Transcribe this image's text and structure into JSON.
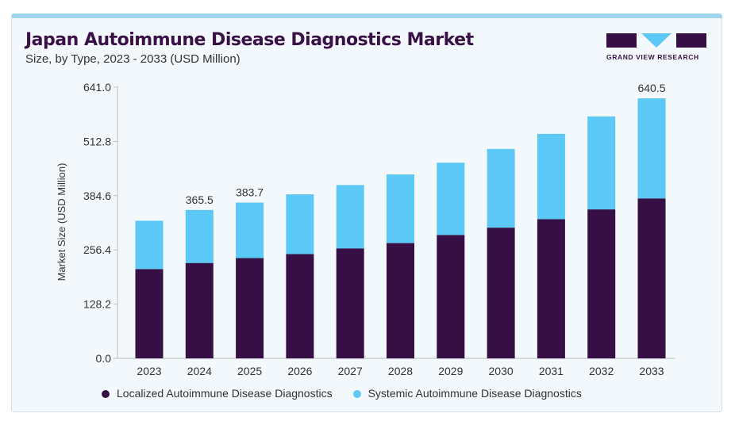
{
  "chart_data": {
    "type": "bar",
    "stacked": true,
    "title": "Japan Autoimmune Disease Diagnostics Market",
    "subtitle": "Size, by Type, 2023 - 2033 (USD Million)",
    "ylabel": "Market Size (USD Million)",
    "xlabel": "",
    "ylim": [
      0,
      641.0
    ],
    "yticks": [
      "0.0",
      "128.2",
      "256.4",
      "384.6",
      "512.8",
      "641.0"
    ],
    "categories": [
      "2023",
      "2024",
      "2025",
      "2026",
      "2027",
      "2028",
      "2029",
      "2030",
      "2031",
      "2032",
      "2033"
    ],
    "series": [
      {
        "name": "Localized Autoimmune Disease Diagnostics",
        "color": "#361045",
        "values": [
          220,
          235,
          247,
          257,
          271,
          284,
          304,
          322,
          343,
          367,
          394
        ]
      },
      {
        "name": "Systemic Autoimmune Disease Diagnostics",
        "color": "#5bc8f5",
        "values": [
          119,
          130.5,
          136.7,
          147,
          156,
          169,
          178,
          194,
          210,
          229,
          246.5
        ]
      }
    ],
    "totals": [
      339,
      365.5,
      383.7,
      404,
      427,
      453,
      482,
      516,
      553,
      596,
      640.5
    ],
    "data_labels": {
      "2024": "365.5",
      "2025": "383.7",
      "2033": "640.5"
    },
    "legend_position": "bottom"
  },
  "brand": {
    "name": "GRAND VIEW RESEARCH"
  }
}
